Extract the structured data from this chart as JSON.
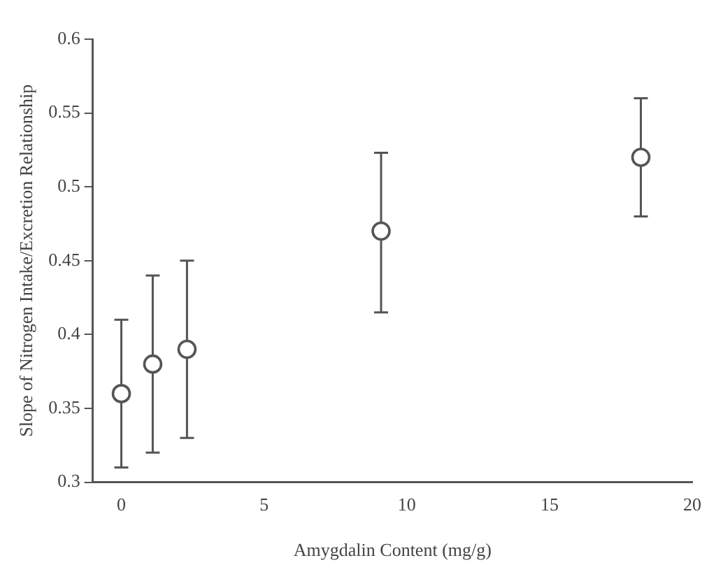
{
  "chart_data": {
    "type": "scatter",
    "xlabel": "Amygdalin Content (mg/g)",
    "ylabel": "Slope of Nitrogen Intake/Excretion Relationship",
    "x": [
      0,
      1.1,
      2.3,
      9.1,
      18.2
    ],
    "values": [
      0.36,
      0.38,
      0.39,
      0.47,
      0.52
    ],
    "errors": [
      [
        0.31,
        0.41
      ],
      [
        0.32,
        0.44
      ],
      [
        0.33,
        0.45
      ],
      [
        0.415,
        0.523
      ],
      [
        0.48,
        0.56
      ]
    ],
    "color": "#555555",
    "marker": "circle",
    "grid": false,
    "legend": false,
    "xlim": [
      -1,
      20
    ],
    "xticks": [
      0,
      5,
      10,
      15,
      20
    ],
    "ylim": [
      0.3,
      0.6
    ],
    "yticks": [
      0.3,
      0.35,
      0.4,
      0.45,
      0.5,
      0.55,
      0.6
    ]
  }
}
